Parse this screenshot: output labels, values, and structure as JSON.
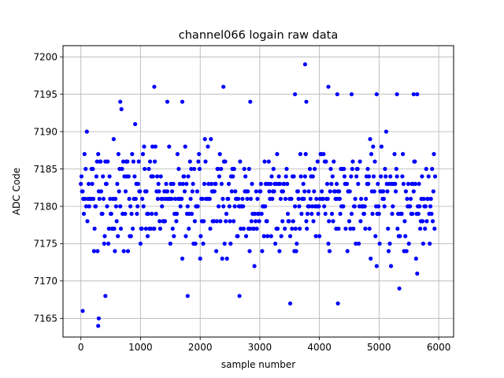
{
  "chart_data": {
    "type": "scatter",
    "title": "channel066 logain raw data",
    "xlabel": "sample number",
    "ylabel": "ADC Code",
    "xlim": [
      -300,
      6250
    ],
    "ylim": [
      7162.5,
      7201.5
    ],
    "x_ticks": [
      0,
      1000,
      2000,
      3000,
      4000,
      5000,
      6000
    ],
    "y_ticks": [
      7165,
      7170,
      7175,
      7180,
      7185,
      7190,
      7195,
      7200
    ],
    "grid": true,
    "marker_color": "#0000ff",
    "dense_band": {
      "x_range": [
        0,
        5940
      ],
      "step": 10,
      "mean": 7181,
      "sigma": 3.6,
      "clip": [
        7169,
        7193
      ]
    },
    "outliers": [
      {
        "x": 30,
        "y": 7166
      },
      {
        "x": 290,
        "y": 7164
      },
      {
        "x": 300,
        "y": 7165
      },
      {
        "x": 1230,
        "y": 7196
      },
      {
        "x": 2390,
        "y": 7196
      },
      {
        "x": 3510,
        "y": 7167
      },
      {
        "x": 3590,
        "y": 7195
      },
      {
        "x": 3760,
        "y": 7199
      },
      {
        "x": 4150,
        "y": 7196
      },
      {
        "x": 4300,
        "y": 7195
      },
      {
        "x": 4310,
        "y": 7167
      },
      {
        "x": 4540,
        "y": 7195
      },
      {
        "x": 4960,
        "y": 7195
      },
      {
        "x": 5300,
        "y": 7195
      },
      {
        "x": 5580,
        "y": 7195
      },
      {
        "x": 5640,
        "y": 7195
      },
      {
        "x": 1790,
        "y": 7168
      },
      {
        "x": 2660,
        "y": 7168
      },
      {
        "x": 410,
        "y": 7168
      },
      {
        "x": 660,
        "y": 7194
      },
      {
        "x": 1450,
        "y": 7194
      },
      {
        "x": 1700,
        "y": 7194
      },
      {
        "x": 2840,
        "y": 7194
      },
      {
        "x": 3780,
        "y": 7194
      }
    ]
  }
}
